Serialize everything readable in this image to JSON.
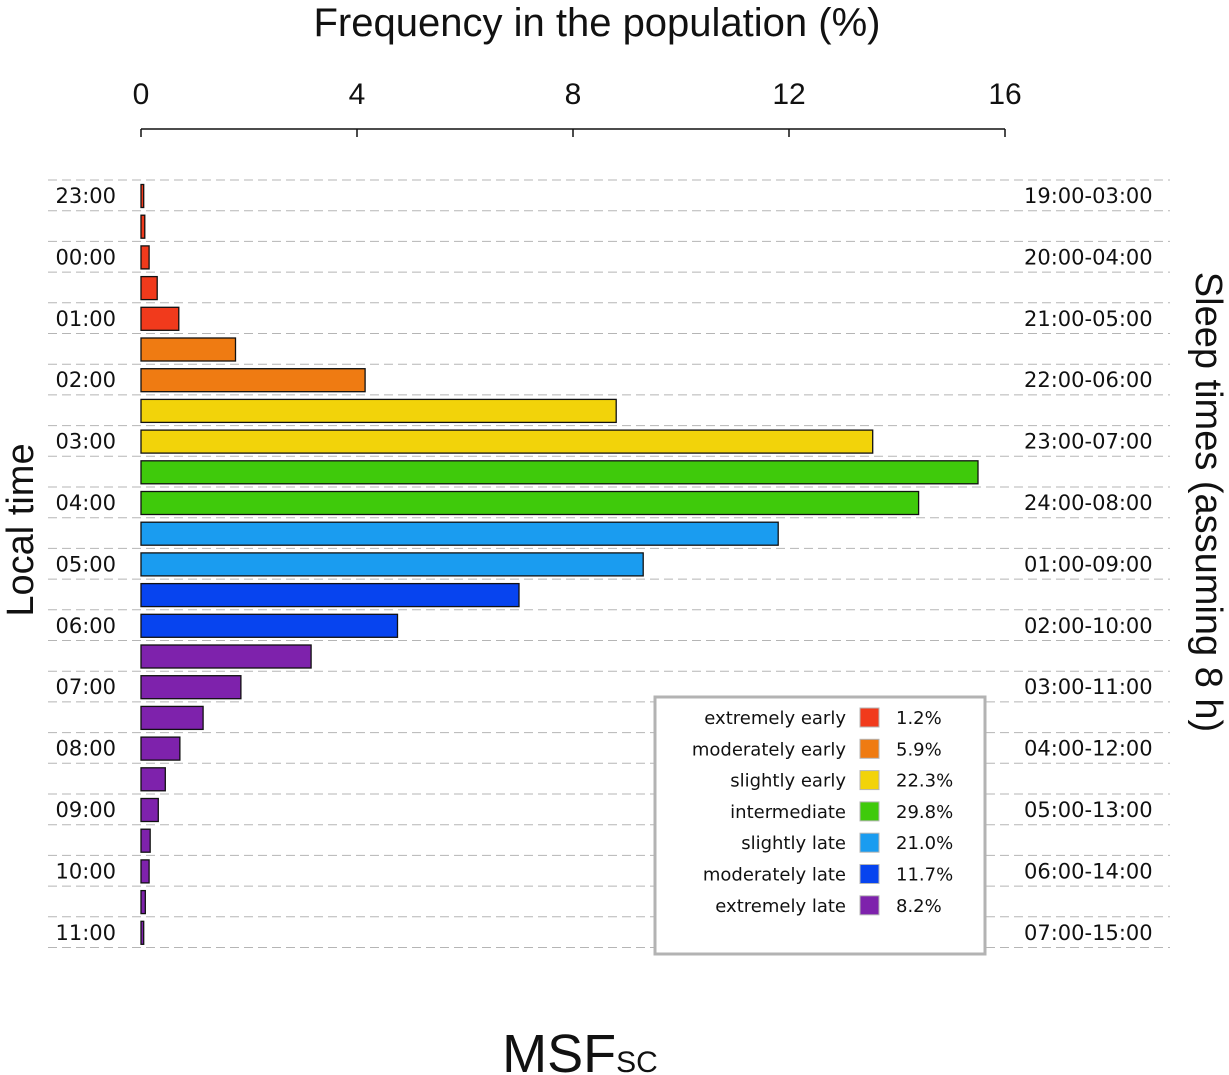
{
  "chart_data": {
    "type": "bar",
    "orientation": "horizontal",
    "title": "Frequency in the population (%)",
    "xlabel": "Frequency in the population (%)",
    "ylabel_left": "Local time",
    "ylabel_right": "Sleep times (assuming 8 h)",
    "footer": {
      "main": "MSF",
      "sub": "SC"
    },
    "xlim": [
      0,
      16
    ],
    "xticks": [
      "0",
      "4",
      "8",
      "12",
      "16"
    ],
    "xtick_values": [
      0,
      4,
      8,
      12,
      16
    ],
    "left_labels": [
      "23:00",
      "00:00",
      "01:00",
      "02:00",
      "03:00",
      "04:00",
      "05:00",
      "06:00",
      "07:00",
      "08:00",
      "09:00",
      "10:00",
      "11:00"
    ],
    "right_labels": [
      "19:00-03:00",
      "20:00-04:00",
      "21:00-05:00",
      "22:00-06:00",
      "23:00-07:00",
      "24:00-08:00",
      "01:00-09:00",
      "02:00-10:00",
      "03:00-11:00",
      "04:00-12:00",
      "05:00-13:00",
      "06:00-14:00",
      "07:00-15:00"
    ],
    "bars": [
      {
        "value": 0.05,
        "category": "extremely early"
      },
      {
        "value": 0.07,
        "category": "extremely early"
      },
      {
        "value": 0.15,
        "category": "extremely early"
      },
      {
        "value": 0.3,
        "category": "extremely early"
      },
      {
        "value": 0.7,
        "category": "extremely early"
      },
      {
        "value": 1.75,
        "category": "moderately early"
      },
      {
        "value": 4.15,
        "category": "moderately early"
      },
      {
        "value": 8.8,
        "category": "slightly early"
      },
      {
        "value": 13.55,
        "category": "slightly early"
      },
      {
        "value": 15.5,
        "category": "intermediate"
      },
      {
        "value": 14.4,
        "category": "intermediate"
      },
      {
        "value": 11.8,
        "category": "slightly late"
      },
      {
        "value": 9.3,
        "category": "slightly late"
      },
      {
        "value": 7.0,
        "category": "moderately late"
      },
      {
        "value": 4.75,
        "category": "moderately late"
      },
      {
        "value": 3.15,
        "category": "extremely late"
      },
      {
        "value": 1.85,
        "category": "extremely late"
      },
      {
        "value": 1.15,
        "category": "extremely late"
      },
      {
        "value": 0.72,
        "category": "extremely late"
      },
      {
        "value": 0.45,
        "category": "extremely late"
      },
      {
        "value": 0.32,
        "category": "extremely late"
      },
      {
        "value": 0.17,
        "category": "extremely late"
      },
      {
        "value": 0.15,
        "category": "extremely late"
      },
      {
        "value": 0.08,
        "category": "extremely late"
      },
      {
        "value": 0.05,
        "category": "extremely late"
      }
    ],
    "legend": [
      {
        "label": "extremely early",
        "value": "1.2%",
        "color": "#f13a1c"
      },
      {
        "label": "moderately early",
        "value": "5.9%",
        "color": "#ef7b12"
      },
      {
        "label": "slightly early",
        "value": "22.3%",
        "color": "#f2d30a"
      },
      {
        "label": "intermediate",
        "value": "29.8%",
        "color": "#3fca0b"
      },
      {
        "label": "slightly late",
        "value": "21.0%",
        "color": "#1a9cf0"
      },
      {
        "label": "moderately late",
        "value": "11.7%",
        "color": "#0744ef"
      },
      {
        "label": "extremely late",
        "value": "8.2%",
        "color": "#7e22ac"
      }
    ],
    "grid": "dashed horizontal"
  }
}
